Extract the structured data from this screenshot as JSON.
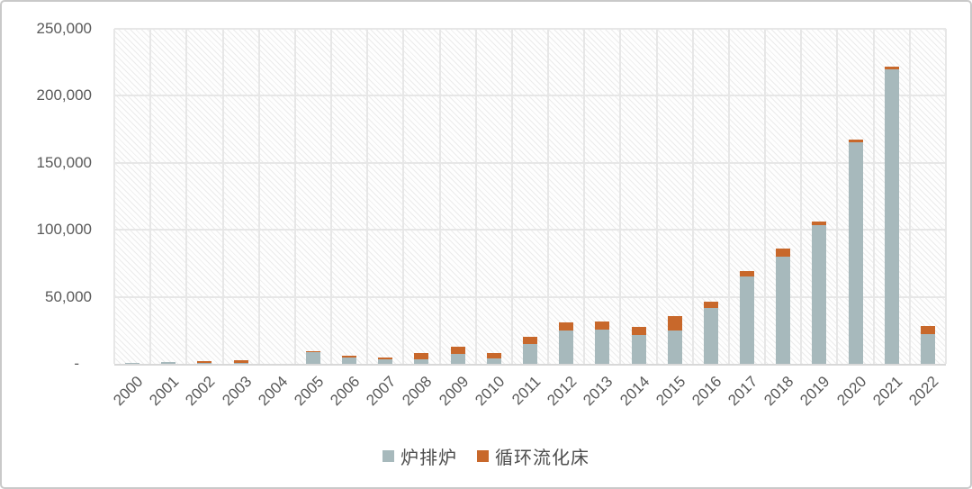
{
  "figure": {
    "background": "#ffffff",
    "border_color": "#c9c9c9",
    "plot_background": "white-with-diagonal-hatch"
  },
  "chart_data": {
    "type": "bar",
    "stacked": true,
    "title": "",
    "xlabel": "",
    "ylabel": "",
    "grid": true,
    "legend_position": "bottom",
    "categories": [
      "2000",
      "2001",
      "2002",
      "2003",
      "2004",
      "2005",
      "2006",
      "2007",
      "2008",
      "2009",
      "2010",
      "2011",
      "2012",
      "2013",
      "2014",
      "2015",
      "2016",
      "2017",
      "2018",
      "2019",
      "2020",
      "2021",
      "2022"
    ],
    "series": [
      {
        "name": "炉排炉",
        "color": "#a7b9bc",
        "values": [
          400,
          1100,
          400,
          900,
          0,
          8600,
          4400,
          3300,
          3400,
          7400,
          4000,
          15000,
          24700,
          25800,
          21800,
          24700,
          42000,
          65400,
          80200,
          103500,
          165100,
          219500,
          22400
        ]
      },
      {
        "name": "循环流化床",
        "color": "#c8682b",
        "values": [
          0,
          0,
          1700,
          1500,
          0,
          600,
          1400,
          1400,
          4400,
          5600,
          3800,
          5000,
          6000,
          5600,
          5600,
          10600,
          4400,
          4100,
          6100,
          3000,
          2500,
          2300,
          6100
        ]
      }
    ],
    "y_axis": {
      "min": 0,
      "max": 250000,
      "tick_interval": 50000,
      "tick_labels": [
        "-",
        "50,000",
        "100,000",
        "150,000",
        "200,000",
        "250,000"
      ]
    }
  },
  "legend": {
    "items": [
      {
        "label": "炉排炉",
        "color": "#a7b9bc"
      },
      {
        "label": "循环流化床",
        "color": "#c8682b"
      }
    ]
  }
}
